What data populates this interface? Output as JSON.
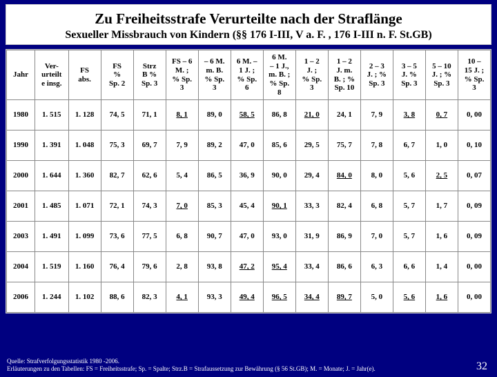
{
  "title_main": "Zu Freiheitsstrafe Verurteilte nach der Straflänge",
  "title_sub": "Sexueller Missbrauch von Kindern (§§ 176 I-III, V a. F. , 176 I-III n. F. St.GB)",
  "columns": [
    "Jahr",
    "Ver-\nurteilt\ne insg.",
    "FS\nabs.",
    "FS\n%\nSp. 2",
    "Strz\nB %\nSp. 3",
    "FS – 6\nM. ;\n% Sp.\n3",
    "– 6 M.\nm. B.\n% Sp.\n3",
    "6 M. –\n1 J. ;\n% Sp.\n6",
    "6 M.\n– 1 J.,\nm. B. ;\n% Sp.\n8",
    "1 – 2\nJ. ;\n% Sp.\n3",
    "1 – 2\nJ. m.\nB. ; %\nSp. 10",
    "2 – 3\nJ. ; %\nSp. 3",
    "3 – 5\nJ. %\nSp. 3",
    "5 – 10\nJ. ; %\nSp. 3",
    "10 –\n15 J. ;\n% Sp.\n3"
  ],
  "rows": [
    {
      "cells": [
        "1980",
        "1. 515",
        "1. 128",
        "74, 5",
        "71, 1",
        "8, 1",
        "89, 0",
        "58, 5",
        "86, 8",
        "21, 0",
        "24, 1",
        "7, 9",
        "3, 8",
        "0, 7",
        "0, 00"
      ],
      "u": [
        5,
        7,
        9,
        12,
        13
      ]
    },
    {
      "cells": [
        "1990",
        "1. 391",
        "1. 048",
        "75, 3",
        "69, 7",
        "7, 9",
        "89, 2",
        "47, 0",
        "85, 6",
        "29, 5",
        "75, 7",
        "7, 8",
        "6, 7",
        "1, 0",
        "0, 10"
      ],
      "u": []
    },
    {
      "cells": [
        "2000",
        "1. 644",
        "1. 360",
        "82, 7",
        "62, 6",
        "5, 4",
        "86, 5",
        "36, 9",
        "90, 0",
        "29, 4",
        "84, 0",
        "8, 0",
        "5, 6",
        "2, 5",
        "0, 07"
      ],
      "u": [
        10,
        13
      ]
    },
    {
      "cells": [
        "2001",
        "1. 485",
        "1. 071",
        "72, 1",
        "74, 3",
        "7, 0",
        "85, 3",
        "45, 4",
        "90, 1",
        "33, 3",
        "82, 4",
        "6, 8",
        "5, 7",
        "1, 7",
        "0, 09"
      ],
      "u": [
        5,
        8
      ]
    },
    {
      "cells": [
        "2003",
        "1. 491",
        "1. 099",
        "73, 6",
        "77, 5",
        "6, 8",
        "90, 7",
        "47, 0",
        "93, 0",
        "31, 9",
        "86, 9",
        "7, 0",
        "5, 7",
        "1, 6",
        "0, 09"
      ],
      "u": []
    },
    {
      "cells": [
        "2004",
        "1. 519",
        "1. 160",
        "76, 4",
        "79, 6",
        "2, 8",
        "93, 8",
        "47, 2",
        "95, 4",
        "33, 4",
        "86, 6",
        "6, 3",
        "6, 6",
        "1, 4",
        "0, 00"
      ],
      "u": [
        7,
        8
      ]
    },
    {
      "cells": [
        "2006",
        "1. 244",
        "1. 102",
        "88, 6",
        "82, 3",
        "4, 1",
        "93, 3",
        "49, 4",
        "96, 5",
        "34, 4",
        "89, 7",
        "5, 0",
        "5, 6",
        "1, 6",
        "0, 00"
      ],
      "u": [
        5,
        7,
        8,
        9,
        10,
        12,
        13
      ]
    }
  ],
  "footer_line1": "Quelle: Strafverfolgungsstatistik 1980 -2006.",
  "footer_line2": "Erläuterungen zu den Tabellen: FS = Freiheitsstrafe; Sp. = Spalte; Strz.B = Strafaussetzung zur Bewährung (§ 56 St.GB); M. = Monate; J. = Jahr(e).",
  "page_number": "32"
}
